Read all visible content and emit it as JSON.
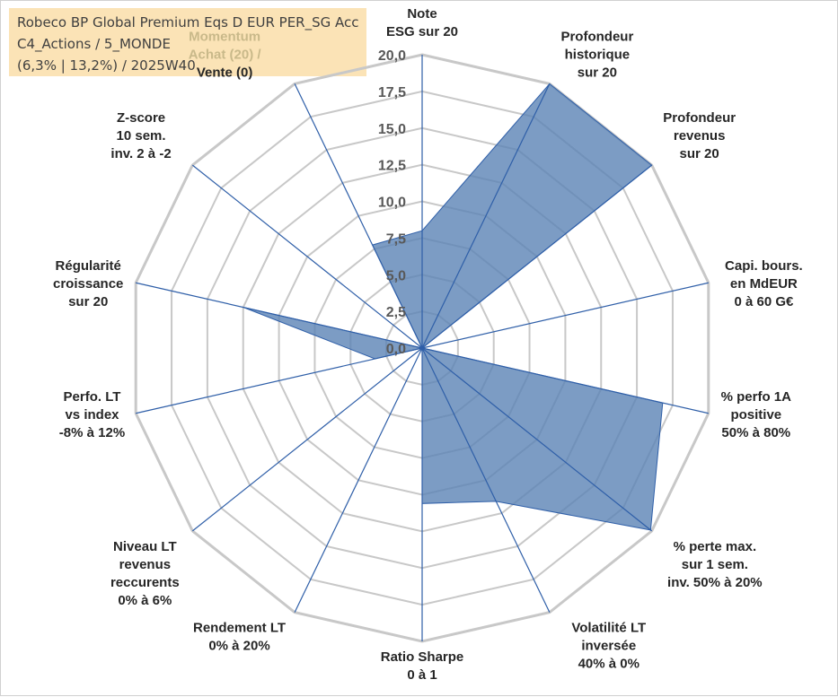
{
  "title_box": {
    "lines": [
      "Robeco BP Global Premium Eqs D EUR PER_SG Acc",
      "C4_Actions / 5_MONDE",
      "(6,3% | 13,2%) / 2025W40"
    ]
  },
  "colors": {
    "fill": "#5b83b5",
    "stroke": "#2f5fa8",
    "grid": "#c8c8c8",
    "axis": "#2f5fa8",
    "title_bg": "#fbe3b6",
    "momentum_label": "#c9b98a"
  },
  "chart_data": {
    "type": "radar",
    "r_min": 0,
    "r_max": 20,
    "r_step": 2.5,
    "tick_labels": [
      "0,0",
      "2,5",
      "5,0",
      "7,5",
      "10,0",
      "12,5",
      "15,0",
      "17,5",
      "20,0"
    ],
    "axes": [
      {
        "lines": [
          "Note",
          "ESG sur 20"
        ],
        "value": 8.0,
        "muted": false
      },
      {
        "lines": [
          "Profondeur",
          "historique",
          "sur 20"
        ],
        "value": 20.0,
        "muted": false
      },
      {
        "lines": [
          "Profondeur",
          "revenus",
          "sur 20"
        ],
        "value": 20.0,
        "muted": false
      },
      {
        "lines": [
          "Capi. bours.",
          "en MdEUR",
          "0 à 60 G€"
        ],
        "value": 0.0,
        "muted": false
      },
      {
        "lines": [
          "% perfo 1A",
          "positive",
          "50% à 80%"
        ],
        "value": 16.8,
        "muted": false
      },
      {
        "lines": [
          "% perte max.",
          "sur 1 sem.",
          "inv. 50% à 20%"
        ],
        "value": 19.9,
        "muted": false
      },
      {
        "lines": [
          "Volatilité LT",
          "inversée",
          "40% à 0%"
        ],
        "value": 11.6,
        "muted": false
      },
      {
        "lines": [
          "Ratio Sharpe",
          "0 à 1"
        ],
        "value": 10.6,
        "muted": false
      },
      {
        "lines": [
          "Rendement LT",
          "0% à 20%"
        ],
        "value": 0.0,
        "muted": false
      },
      {
        "lines": [
          "Niveau LT",
          "revenus",
          "reccurents",
          "0% à 6%"
        ],
        "value": 0.0,
        "muted": false
      },
      {
        "lines": [
          "Perfo. LT",
          "vs index",
          "-8% à 12%"
        ],
        "value": 3.3,
        "muted": false
      },
      {
        "lines": [
          "Régularité",
          "croissance",
          "sur 20"
        ],
        "value": 12.5,
        "muted": false
      },
      {
        "lines": [
          "Z-score",
          "10 sem.",
          "inv. 2 à -2"
        ],
        "value": 0.0,
        "muted": false
      },
      {
        "lines": [
          "Momentum",
          "Achat (20) /",
          "Vente (0)"
        ],
        "value": 7.8,
        "muted": true
      }
    ]
  }
}
